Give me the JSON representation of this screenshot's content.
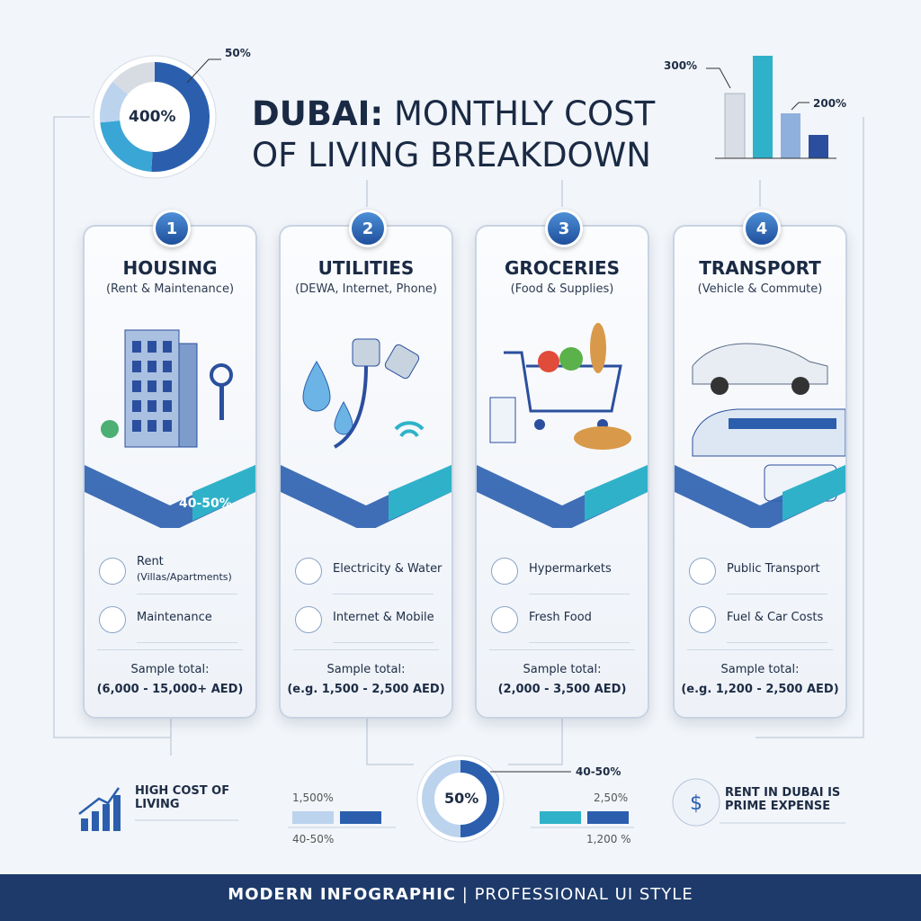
{
  "header": {
    "title_bold": "DUBAI:",
    "title_line1": "MONTHLY COST",
    "title_line2": "OF LIVING BREAKDOWN"
  },
  "top_donut": {
    "center": "400%",
    "callout": "50%"
  },
  "top_bars": {
    "label_left": "300%",
    "label_right": "200%"
  },
  "cards": [
    {
      "number": "1",
      "title": "HOUSING",
      "subtitle": "(Rent & Maintenance)",
      "band_label": "40-50%",
      "items": [
        {
          "label": "Rent",
          "sublabel": "(Villas/Apartments)"
        },
        {
          "label": "Maintenance"
        }
      ],
      "total_label": "Sample total:",
      "total": "(6,000 - 15,000+ AED)"
    },
    {
      "number": "2",
      "title": "UTILITIES",
      "subtitle": "(DEWA, Internet, Phone)",
      "items": [
        {
          "label": "Electricity & Water"
        },
        {
          "label": "Internet & Mobile"
        }
      ],
      "total_label": "Sample total:",
      "total": "(e.g. 1,500 - 2,500 AED)"
    },
    {
      "number": "3",
      "title": "GROCERIES",
      "subtitle": "(Food & Supplies)",
      "items": [
        {
          "label": "Hypermarkets"
        },
        {
          "label": "Fresh Food"
        }
      ],
      "total_label": "Sample total:",
      "total": "(2,000 - 3,500 AED)"
    },
    {
      "number": "4",
      "title": "TRANSPORT",
      "subtitle": "(Vehicle & Commute)",
      "items": [
        {
          "label": "Public Transport"
        },
        {
          "label": "Fuel & Car Costs"
        }
      ],
      "total_label": "Sample total:",
      "total": "(e.g. 1,200 - 2,500 AED)"
    }
  ],
  "bottom": {
    "left_text": "HIGH COST OF LIVING",
    "donut_center": "50%",
    "callout": "40-50%",
    "left_top": "1,500%",
    "left_bottom": "40-50%",
    "right_top": "2,50%",
    "right_bottom": "1,200 %",
    "right_text": "RENT IN DUBAI IS PRIME EXPENSE"
  },
  "footer": {
    "left": "MODERN INFOGRAPHIC",
    "separator": "|",
    "right": "PROFESSIONAL UI STYLE"
  }
}
